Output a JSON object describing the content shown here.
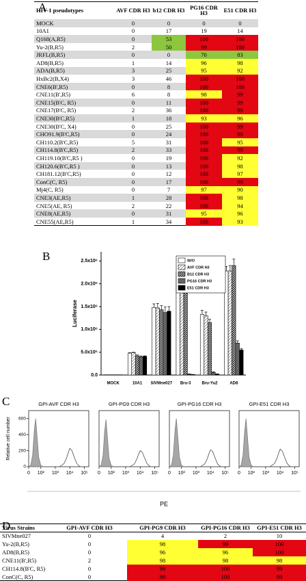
{
  "panel_labels": [
    "A",
    "B",
    "C",
    "D"
  ],
  "color_scale": [
    {
      "min": 99,
      "color": "#e30613"
    },
    {
      "min": 90,
      "color": "#ffff33"
    },
    {
      "min": 50,
      "color": "#8dc63f"
    }
  ],
  "table_a": {
    "columns": [
      "HIV-1 pseudotypes",
      "AVF CDR H3",
      "b12 CDR H3",
      "PG16 CDR H3",
      "E51 CDR H3"
    ],
    "rows": [
      [
        "MOCK",
        0,
        0,
        0,
        0
      ],
      [
        "10A1",
        0,
        17,
        19,
        14
      ],
      [
        "Q168(A,R5)",
        0,
        53,
        100,
        100
      ],
      [
        "Yu-2(B,R5)",
        2,
        50,
        99,
        100
      ],
      [
        "JRFL(B,R5)",
        0,
        0,
        70,
        83
      ],
      [
        "AD8(B,R5)",
        1,
        14,
        96,
        98
      ],
      [
        "ADA(B,R5)",
        3,
        25,
        95,
        92
      ],
      [
        "HxBc2(B,X4)",
        3,
        46,
        100,
        100
      ],
      [
        "CNE6(B',R5)",
        0,
        8,
        100,
        100
      ],
      [
        "CNE11(B',R5)",
        6,
        8,
        98,
        99
      ],
      [
        "CNE15(B'C, R5)",
        0,
        11,
        100,
        99
      ],
      [
        "CNE17(B'C, R5)",
        2,
        36,
        100,
        99
      ],
      [
        "CNE30(B'C,R5)",
        1,
        18,
        93,
        96
      ],
      [
        "CNE30(B'C, X4)",
        0,
        25,
        100,
        99
      ],
      [
        "CHO91.9(B'C,R5)",
        0,
        24,
        100,
        99
      ],
      [
        "CH110.2(B'C,R5)",
        5,
        31,
        100,
        95
      ],
      [
        "CH114.8(B'C,R5)",
        2,
        33,
        100,
        99
      ],
      [
        "CH119.10(B'C,R5 )",
        0,
        19,
        100,
        92
      ],
      [
        "CH120.6(B'C,R5 )",
        0,
        13,
        100,
        98
      ],
      [
        "CH181.12(B'C,R5)",
        0,
        12,
        100,
        97
      ],
      [
        "ConC(C, R5)",
        0,
        17,
        100,
        99
      ],
      [
        "Mj4(C, R5)",
        0,
        7,
        97,
        90
      ],
      [
        "CNE3(AE,R5)",
        1,
        28,
        100,
        98
      ],
      [
        "CNE5(AE, R5)",
        2,
        22,
        100,
        94
      ],
      [
        "CNE8(AE,R5)",
        0,
        31,
        95,
        96
      ],
      [
        "CNE55(AE,R5)",
        1,
        34,
        100,
        93
      ]
    ]
  },
  "table_d": {
    "columns": [
      "Virus Strains",
      "GPI-AVF CDR H3",
      "GPI-PG9 CDR H3",
      "GPI-PG16 CDR H3",
      "GPI-E51 CDR H3"
    ],
    "rows": [
      [
        "SIVMne027",
        0,
        4,
        2,
        10
      ],
      [
        "Yu-2(B,R5)",
        0,
        98,
        99,
        100
      ],
      [
        "AD8(B,R5)",
        0,
        96,
        96,
        100
      ],
      [
        "CNE11(B',R5)",
        2,
        98,
        98,
        98
      ],
      [
        "CH114.8(B'C, R5)",
        0,
        99,
        100,
        99
      ],
      [
        "ConC(C, R5)",
        0,
        99,
        100,
        99
      ]
    ]
  },
  "chart_data": [
    {
      "type": "bar",
      "y_label": "Luciferase",
      "categories": [
        "MOCK",
        "10A1",
        "SIVMne027",
        "Bru-3",
        "Bru-Yu2",
        "AD8"
      ],
      "ylim": [
        0,
        2700000
      ],
      "yticks": [
        {
          "value": 0,
          "label": "0.0"
        },
        {
          "value": 500000,
          "label": "5.0x10⁵"
        },
        {
          "value": 1000000,
          "label": "1.0x10⁶"
        },
        {
          "value": 1500000,
          "label": "1.5x10⁶"
        },
        {
          "value": 2000000,
          "label": "2.0x10⁶"
        },
        {
          "value": 2500000,
          "label": "2.5x10⁶"
        }
      ],
      "legend": "top-right",
      "series": [
        {
          "name": "W/O",
          "color": "#ffffff",
          "pattern": null,
          "values": [
            5000,
            480000,
            1480000,
            2270000,
            1330000,
            2280000
          ],
          "errors": [
            0,
            10000,
            80000,
            100000,
            90000,
            100000
          ]
        },
        {
          "name": "AVF CDR H3",
          "color": "#ffffff",
          "pattern": "diagonal",
          "values": [
            5000,
            490000,
            1470000,
            2370000,
            1300000,
            2280000
          ],
          "errors": [
            0,
            10000,
            100000,
            110000,
            80000,
            120000
          ]
        },
        {
          "name": "B12 CDR H3",
          "color": "#cccccc",
          "pattern": "cross",
          "values": [
            5000,
            420000,
            1430000,
            2270000,
            1150000,
            2400000
          ],
          "errors": [
            0,
            20000,
            90000,
            120000,
            70000,
            140000
          ]
        },
        {
          "name": "PG16 CDR H3",
          "color": "#888888",
          "pattern": "vertical",
          "values": [
            5000,
            400000,
            1370000,
            20000,
            60000,
            700000
          ],
          "errors": [
            0,
            20000,
            120000,
            5000,
            10000,
            50000
          ]
        },
        {
          "name": "E51 CDR H3",
          "color": "#000000",
          "pattern": null,
          "values": [
            5000,
            410000,
            1400000,
            10000,
            20000,
            550000
          ],
          "errors": [
            0,
            10000,
            100000,
            3000,
            5000,
            30000
          ]
        }
      ]
    },
    {
      "type": "line",
      "title": "GPI-AVF CDR H3",
      "x_label": "PE",
      "y_label": "Relative cell number",
      "xscale": "asinh",
      "xlim": [
        0,
        200000
      ],
      "ylim": [
        0,
        700
      ],
      "xticks": [
        0,
        {
          "value": 100,
          "label": "10²"
        },
        {
          "value": 1000,
          "label": "10³"
        },
        {
          "value": 10000,
          "label": "10⁴"
        },
        {
          "value": 100000,
          "label": "10⁵"
        }
      ],
      "yticks": [
        0,
        200,
        400,
        600
      ],
      "series": [
        {
          "filled": true,
          "color": "#a6a6a6",
          "x": [
            0,
            10,
            20,
            30,
            40,
            50,
            70,
            100,
            150
          ],
          "values": [
            0,
            20,
            150,
            450,
            600,
            420,
            120,
            15,
            0
          ]
        },
        {
          "filled": false,
          "color": "#333333",
          "x": [
            2000,
            4000,
            6000,
            8000,
            10000,
            14000,
            20000,
            30000,
            50000
          ],
          "values": [
            0,
            40,
            110,
            180,
            230,
            200,
            120,
            40,
            0
          ]
        }
      ]
    },
    {
      "type": "line",
      "title": "GPI-PG9 CDR H3",
      "xscale": "asinh",
      "xlim": [
        0,
        200000
      ],
      "ylim": [
        0,
        700
      ],
      "xticks": [
        0,
        {
          "value": 100,
          "label": "10²"
        },
        {
          "value": 1000,
          "label": "10³"
        },
        {
          "value": 10000,
          "label": "10⁴"
        },
        {
          "value": 100000,
          "label": "10⁵"
        }
      ],
      "series": [
        {
          "filled": true,
          "color": "#a6a6a6",
          "x": [
            0,
            10,
            20,
            30,
            40,
            50,
            70,
            100,
            150
          ],
          "values": [
            0,
            20,
            140,
            440,
            590,
            410,
            110,
            15,
            0
          ]
        },
        {
          "filled": false,
          "color": "#333333",
          "x": [
            2000,
            4000,
            6000,
            8000,
            10000,
            14000,
            20000,
            30000,
            50000
          ],
          "values": [
            0,
            35,
            100,
            160,
            200,
            180,
            110,
            35,
            0
          ]
        }
      ]
    },
    {
      "type": "line",
      "title": "GPI-PG16 CDR H3",
      "xscale": "asinh",
      "xlim": [
        0,
        200000
      ],
      "ylim": [
        0,
        700
      ],
      "xticks": [
        0,
        {
          "value": 100,
          "label": "10²"
        },
        {
          "value": 1000,
          "label": "10³"
        },
        {
          "value": 10000,
          "label": "10⁴"
        },
        {
          "value": 100000,
          "label": "10⁵"
        }
      ],
      "series": [
        {
          "filled": true,
          "color": "#a6a6a6",
          "x": [
            0,
            10,
            20,
            30,
            40,
            50,
            70,
            100,
            150
          ],
          "values": [
            0,
            20,
            150,
            450,
            600,
            420,
            120,
            15,
            0
          ]
        },
        {
          "filled": false,
          "color": "#333333",
          "x": [
            2000,
            4000,
            6000,
            8000,
            10000,
            14000,
            20000,
            30000,
            50000
          ],
          "values": [
            0,
            35,
            100,
            170,
            210,
            190,
            115,
            35,
            0
          ]
        }
      ]
    },
    {
      "type": "line",
      "title": "GPI-E51 CDR H3",
      "xscale": "asinh",
      "xlim": [
        0,
        200000
      ],
      "ylim": [
        0,
        700
      ],
      "xticks": [
        0,
        {
          "value": 100,
          "label": "10²"
        },
        {
          "value": 1000,
          "label": "10³"
        },
        {
          "value": 10000,
          "label": "10⁴"
        },
        {
          "value": 100000,
          "label": "10⁵"
        }
      ],
      "series": [
        {
          "filled": true,
          "color": "#a6a6a6",
          "x": [
            0,
            10,
            20,
            30,
            40,
            50,
            70,
            100,
            150
          ],
          "values": [
            0,
            20,
            150,
            450,
            600,
            420,
            120,
            15,
            0
          ]
        },
        {
          "filled": false,
          "color": "#333333",
          "x": [
            2000,
            4000,
            6000,
            8000,
            10000,
            14000,
            20000,
            30000,
            50000
          ],
          "values": [
            0,
            38,
            105,
            175,
            220,
            195,
            118,
            38,
            0
          ]
        }
      ]
    }
  ]
}
